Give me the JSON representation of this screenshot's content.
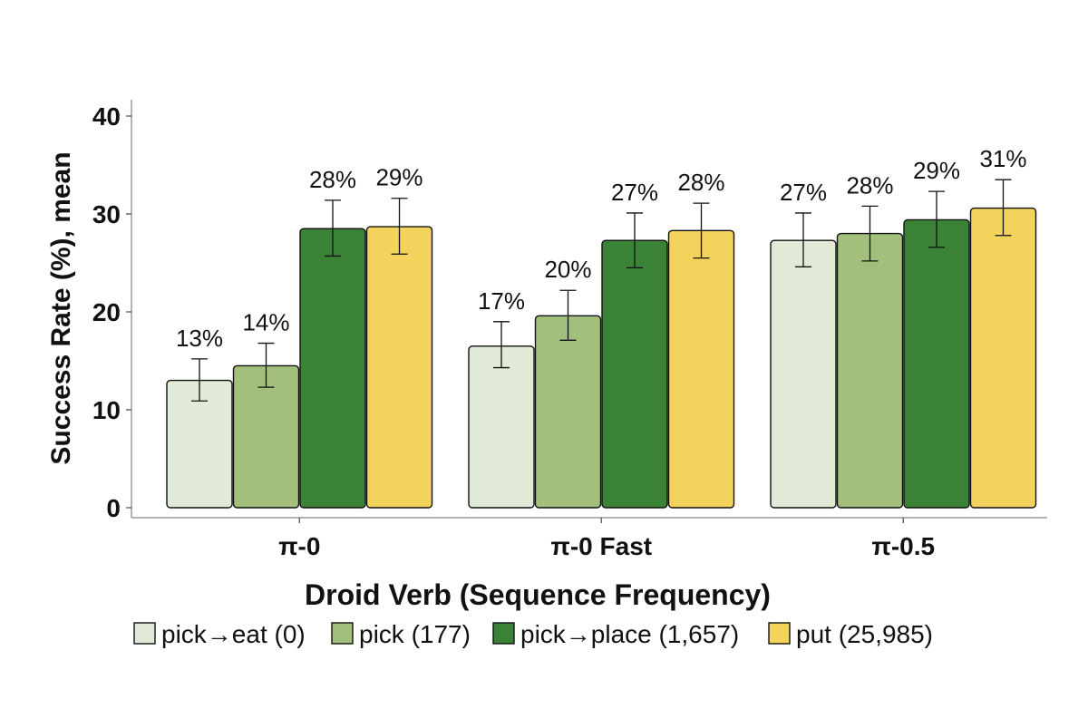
{
  "chart_data": {
    "type": "bar",
    "title": "",
    "xlabel": "Droid Verb (Sequence Frequency)",
    "ylabel": "Success Rate (%), mean",
    "ylim": [
      0,
      40
    ],
    "yticks": [
      0,
      10,
      20,
      30,
      40
    ],
    "grid": false,
    "legend_position": "bottom",
    "categories": [
      "π-0",
      "π-0 Fast",
      "π-0.5"
    ],
    "series": [
      {
        "name": "pick→eat (0)",
        "color": "#e0ead6",
        "values": [
          13,
          16.5,
          27.3
        ],
        "labels": [
          "13%",
          "17%",
          "27%"
        ],
        "err_low": [
          10.9,
          14.3,
          24.6
        ],
        "err_high": [
          15.2,
          19.0,
          30.1
        ]
      },
      {
        "name": "pick (177)",
        "color": "#a2bf7b",
        "values": [
          14.5,
          19.6,
          28.0
        ],
        "labels": [
          "14%",
          "20%",
          "28%"
        ],
        "err_low": [
          12.3,
          17.1,
          25.2
        ],
        "err_high": [
          16.8,
          22.2,
          30.8
        ]
      },
      {
        "name": "pick→place (1,657)",
        "color": "#3a8236",
        "values": [
          28.5,
          27.3,
          29.4
        ],
        "labels": [
          "28%",
          "27%",
          "29%"
        ],
        "err_low": [
          25.7,
          24.5,
          26.6
        ],
        "err_high": [
          31.4,
          30.1,
          32.3
        ]
      },
      {
        "name": "put (25,985)",
        "color": "#f3d35b",
        "values": [
          28.7,
          28.3,
          30.6
        ],
        "labels": [
          "29%",
          "28%",
          "31%"
        ],
        "err_low": [
          25.9,
          25.5,
          27.8
        ],
        "err_high": [
          31.6,
          31.1,
          33.5
        ]
      }
    ]
  }
}
